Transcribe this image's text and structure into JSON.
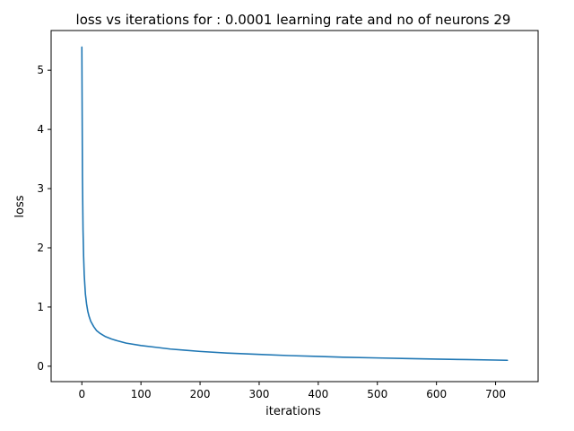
{
  "chart_data": {
    "type": "line",
    "title": "loss vs iterations for : 0.0001 learning rate and no of neurons 29",
    "xlabel": "iterations",
    "ylabel": "loss",
    "xlim": [
      -52,
      772
    ],
    "ylim": [
      -0.26,
      5.67
    ],
    "xticks": [
      0,
      100,
      200,
      300,
      400,
      500,
      600,
      700
    ],
    "yticks": [
      0,
      1,
      2,
      3,
      4,
      5
    ],
    "grid": false,
    "colors": {
      "series": "#1f77b4"
    },
    "series": [
      {
        "x": [
          0,
          1,
          2,
          3,
          4,
          5,
          6,
          8,
          10,
          12,
          15,
          20,
          25,
          30,
          40,
          50,
          60,
          75,
          100,
          125,
          150,
          175,
          200,
          250,
          300,
          350,
          400,
          450,
          500,
          550,
          600,
          650,
          700,
          720
        ],
        "y": [
          5.39,
          3.2,
          2.3,
          1.85,
          1.55,
          1.38,
          1.22,
          1.05,
          0.93,
          0.85,
          0.76,
          0.67,
          0.6,
          0.56,
          0.5,
          0.46,
          0.43,
          0.39,
          0.35,
          0.32,
          0.29,
          0.27,
          0.25,
          0.22,
          0.2,
          0.18,
          0.165,
          0.15,
          0.14,
          0.13,
          0.12,
          0.112,
          0.104,
          0.1
        ]
      }
    ]
  }
}
